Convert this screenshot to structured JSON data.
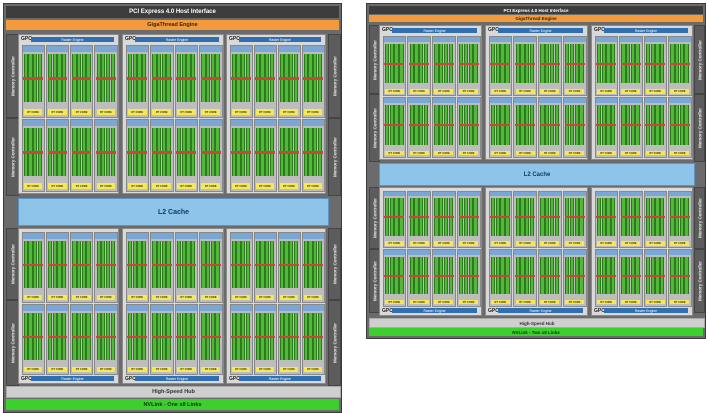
{
  "left_chip": {
    "pcie_label": "PCI Express 4.0 Host Interface",
    "gigathread_label": "GigaThread Engine",
    "l2_label": "L2 Cache",
    "hub_label": "High-Speed Hub",
    "nvlink_label": "NVLink - One x8 Links",
    "memory_controller_label": "Memory Controller",
    "gpc_label": "GPC",
    "raster_label": "Raster Engine",
    "rt_core_label": "RT CORE"
  },
  "right_chip": {
    "pcie_label": "PCI Express 4.0 Host Interface",
    "gigathread_label": "GigaThread Engine",
    "l2_label": "L2 Cache",
    "hub_label": "High-Speed Hub",
    "nvlink_label": "NVLink - Two x8 Links",
    "memory_controller_label": "Memory Controller",
    "gpc_label": "GPC",
    "raster_label": "Raster Engine",
    "rt_core_label": "RT CORE"
  },
  "colors": {
    "chip_bg": "#6b6b6b",
    "gigathread": "#f39a3c",
    "l2_cache": "#8ec4ea",
    "nvlink": "#3ccf2e",
    "cuda_core": "#52b83a",
    "rt_core": "#f4e85a",
    "raster_engine": "#2f6fb2"
  }
}
